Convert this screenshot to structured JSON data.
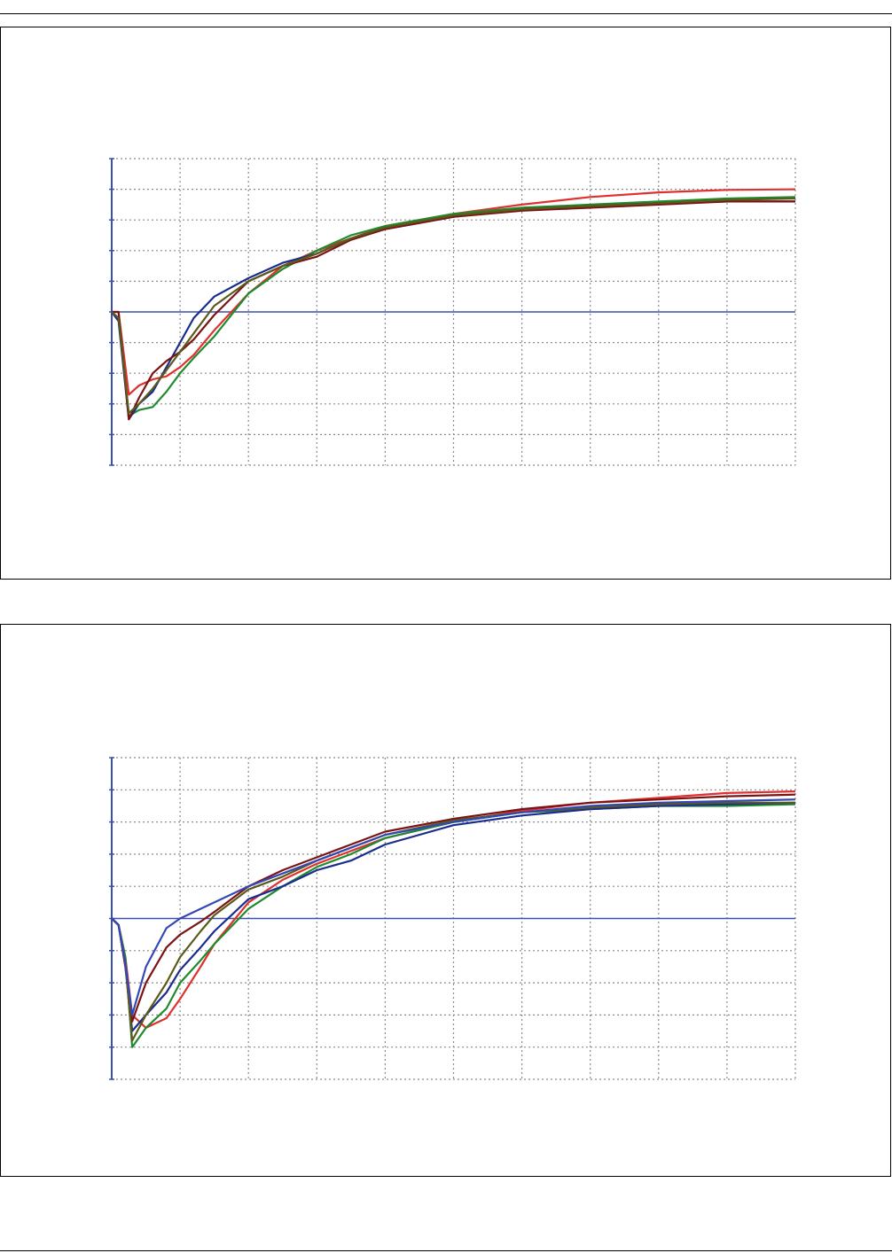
{
  "page": {
    "colors": {
      "axis": "#3a4fb0",
      "grid": "#8c8c8c",
      "frame": "#000000"
    }
  },
  "chart_data": [
    {
      "type": "line",
      "title": "",
      "xlabel": "",
      "ylabel": "",
      "xlim": [
        0,
        10
      ],
      "ylim": [
        -5,
        5
      ],
      "grid": true,
      "legend": "none",
      "series": [
        {
          "color": "#e03030",
          "x": [
            0,
            0.1,
            0.25,
            0.4,
            0.6,
            0.8,
            1.0,
            1.2,
            1.5,
            2.0,
            2.5,
            3.0,
            3.5,
            4.0,
            5.0,
            6.0,
            7.0,
            8.0,
            9.0,
            10.0
          ],
          "y": [
            0,
            0,
            -2.7,
            -2.4,
            -2.2,
            -2.1,
            -1.8,
            -1.4,
            -0.6,
            0.6,
            1.5,
            2.0,
            2.4,
            2.8,
            3.2,
            3.5,
            3.75,
            3.9,
            3.98,
            4.0
          ]
        },
        {
          "color": "#1f8a2e",
          "x": [
            0,
            0.1,
            0.25,
            0.4,
            0.6,
            0.8,
            1.0,
            1.2,
            1.5,
            2.0,
            2.5,
            3.0,
            3.5,
            4.0,
            5.0,
            6.0,
            7.0,
            8.0,
            9.0,
            10.0
          ],
          "y": [
            0,
            -0.2,
            -3.4,
            -3.2,
            -3.1,
            -2.6,
            -2.0,
            -1.5,
            -0.8,
            0.6,
            1.4,
            2.0,
            2.5,
            2.8,
            3.2,
            3.4,
            3.5,
            3.6,
            3.7,
            3.75
          ]
        },
        {
          "color": "#1a2d8f",
          "x": [
            0,
            0.1,
            0.25,
            0.4,
            0.6,
            0.8,
            1.0,
            1.2,
            1.5,
            2.0,
            2.5,
            3.0,
            3.5,
            4.0,
            5.0,
            6.0,
            7.0,
            8.0,
            9.0,
            10.0
          ],
          "y": [
            0,
            -0.3,
            -3.5,
            -3.0,
            -2.6,
            -1.8,
            -1.0,
            -0.2,
            0.5,
            1.1,
            1.6,
            1.9,
            2.4,
            2.7,
            3.1,
            3.35,
            3.45,
            3.55,
            3.6,
            3.6
          ]
        },
        {
          "color": "#7a1414",
          "x": [
            0,
            0.1,
            0.25,
            0.4,
            0.6,
            0.8,
            1.0,
            1.2,
            1.5,
            2.0,
            2.5,
            3.0,
            3.5,
            4.0,
            5.0,
            6.0,
            7.0,
            8.0,
            9.0,
            10.0
          ],
          "y": [
            0,
            0,
            -3.5,
            -2.8,
            -2.0,
            -1.6,
            -1.3,
            -0.9,
            -0.1,
            1.0,
            1.5,
            1.8,
            2.35,
            2.7,
            3.1,
            3.3,
            3.4,
            3.5,
            3.6,
            3.6
          ]
        },
        {
          "color": "#5a5a1a",
          "x": [
            0,
            0.1,
            0.25,
            0.4,
            0.6,
            0.8,
            1.0,
            1.2,
            1.5,
            2.0,
            2.5,
            3.0,
            3.5,
            4.0,
            5.0,
            6.0,
            7.0,
            8.0,
            9.0,
            10.0
          ],
          "y": [
            0,
            -0.2,
            -3.3,
            -3.0,
            -2.5,
            -1.9,
            -1.3,
            -0.7,
            0.2,
            1.0,
            1.5,
            1.9,
            2.4,
            2.75,
            3.15,
            3.35,
            3.45,
            3.55,
            3.65,
            3.7
          ]
        }
      ]
    },
    {
      "type": "line",
      "title": "",
      "xlabel": "",
      "ylabel": "",
      "xlim": [
        0,
        10
      ],
      "ylim": [
        -5,
        5
      ],
      "grid": true,
      "legend": "none",
      "series": [
        {
          "color": "#e03030",
          "x": [
            0,
            0.1,
            0.2,
            0.3,
            0.5,
            0.8,
            1.0,
            1.3,
            1.5,
            2.0,
            2.5,
            3.0,
            3.5,
            4.0,
            5.0,
            6.0,
            7.0,
            8.0,
            9.0,
            10.0
          ],
          "y": [
            0,
            -0.2,
            -1.2,
            -3.0,
            -3.4,
            -3.1,
            -2.5,
            -1.5,
            -0.8,
            0.5,
            1.2,
            1.7,
            2.1,
            2.5,
            3.0,
            3.35,
            3.6,
            3.75,
            3.9,
            3.95
          ]
        },
        {
          "color": "#1f8a2e",
          "x": [
            0,
            0.1,
            0.2,
            0.3,
            0.5,
            0.8,
            1.0,
            1.3,
            1.5,
            2.0,
            2.5,
            3.0,
            3.5,
            4.0,
            5.0,
            6.0,
            7.0,
            8.0,
            9.0,
            10.0
          ],
          "y": [
            0,
            -0.2,
            -1.2,
            -4.0,
            -3.4,
            -2.8,
            -2.0,
            -1.3,
            -0.8,
            0.3,
            1.0,
            1.6,
            2.0,
            2.5,
            3.0,
            3.3,
            3.4,
            3.5,
            3.5,
            3.55
          ]
        },
        {
          "color": "#1a2d8f",
          "x": [
            0,
            0.1,
            0.2,
            0.3,
            0.5,
            0.8,
            1.0,
            1.3,
            1.5,
            2.0,
            2.5,
            3.0,
            3.5,
            4.0,
            5.0,
            6.0,
            7.0,
            8.0,
            9.0,
            10.0
          ],
          "y": [
            0,
            -0.2,
            -1.5,
            -3.5,
            -3.0,
            -2.3,
            -1.6,
            -0.9,
            -0.4,
            0.6,
            1.0,
            1.5,
            1.8,
            2.3,
            2.9,
            3.2,
            3.4,
            3.5,
            3.55,
            3.6
          ]
        },
        {
          "color": "#7a1414",
          "x": [
            0,
            0.1,
            0.2,
            0.3,
            0.5,
            0.8,
            1.0,
            1.3,
            1.5,
            2.0,
            2.5,
            3.0,
            3.5,
            4.0,
            5.0,
            6.0,
            7.0,
            8.0,
            9.0,
            10.0
          ],
          "y": [
            0,
            -0.2,
            -1.5,
            -3.2,
            -2.0,
            -0.9,
            -0.5,
            -0.1,
            0.2,
            1.0,
            1.5,
            1.9,
            2.3,
            2.7,
            3.1,
            3.4,
            3.6,
            3.7,
            3.8,
            3.85
          ]
        },
        {
          "color": "#5a5a1a",
          "x": [
            0,
            0.1,
            0.2,
            0.3,
            0.5,
            0.8,
            1.0,
            1.3,
            1.5,
            2.0,
            2.5,
            3.0,
            3.5,
            4.0,
            5.0,
            6.0,
            7.0,
            8.0,
            9.0,
            10.0
          ],
          "y": [
            0,
            -0.2,
            -1.4,
            -3.8,
            -3.0,
            -2.0,
            -1.2,
            -0.4,
            0.1,
            0.9,
            1.3,
            1.8,
            2.2,
            2.6,
            3.05,
            3.3,
            3.45,
            3.55,
            3.6,
            3.6
          ]
        },
        {
          "color": "#3448b5",
          "x": [
            0,
            0.1,
            0.2,
            0.3,
            0.5,
            0.8,
            1.0,
            1.3,
            1.5,
            2.0,
            2.5,
            3.0,
            3.5,
            4.0,
            5.0,
            6.0,
            7.0,
            8.0,
            9.0,
            10.0
          ],
          "y": [
            0,
            -0.2,
            -1.4,
            -3.0,
            -1.5,
            -0.3,
            0.0,
            0.3,
            0.5,
            1.0,
            1.4,
            1.8,
            2.2,
            2.6,
            3.0,
            3.3,
            3.5,
            3.6,
            3.65,
            3.7
          ]
        }
      ]
    }
  ]
}
